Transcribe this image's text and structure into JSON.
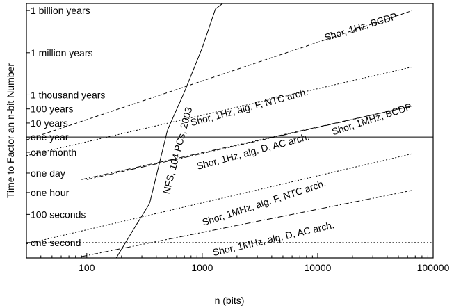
{
  "chart_data": {
    "type": "line",
    "xlabel": "n (bits)",
    "ylabel": "Time to Factor an n-bit Number",
    "x_scale": "log",
    "xlim": [
      30,
      100000
    ],
    "x_ticks": [
      {
        "value": 100,
        "label": "100"
      },
      {
        "value": 1000,
        "label": "1000"
      },
      {
        "value": 10000,
        "label": "10000"
      },
      {
        "value": 100000,
        "label": "100000"
      }
    ],
    "y_scale": "log",
    "y_unit": "seconds",
    "ylim": [
      0.08,
      1e+17
    ],
    "y_ticks": [
      {
        "value": 3.156e+16,
        "label": "1 billion years"
      },
      {
        "value": 31560000000000.0,
        "label": "1 million years"
      },
      {
        "value": 31560000000.0,
        "label": "1 thousand years"
      },
      {
        "value": 3156000000.0,
        "label": "100 years"
      },
      {
        "value": 315600000.0,
        "label": "10 years"
      },
      {
        "value": 31560000.0,
        "label": "one year"
      },
      {
        "value": 2630000.0,
        "label": "one month"
      },
      {
        "value": 86400,
        "label": "one day"
      },
      {
        "value": 3600,
        "label": "one hour"
      },
      {
        "value": 100,
        "label": "100 seconds"
      },
      {
        "value": 1,
        "label": "one second"
      }
    ],
    "reference_lines": [
      {
        "value": 31560000.0,
        "style": "solid"
      },
      {
        "value": 1,
        "style": "dotted"
      }
    ],
    "grid": false,
    "legend": "none",
    "series": [
      {
        "label": "NFS, 104 PCs, 2003",
        "style": "solid",
        "x": [
          180,
          250,
          350,
          500,
          700,
          1000,
          1300,
          1500
        ],
        "y": [
          0.08,
          7,
          600,
          100000000.0,
          50000000000.0,
          70000000000000.0,
          4e+16,
          1e+17
        ]
      },
      {
        "label": "Shor, 1Hz, BCDP",
        "style": "dashed",
        "x": [
          30,
          65000
        ],
        "y": [
          20000000.0,
          3e+16
        ]
      },
      {
        "label": "Shor, 1Hz, alg. F, NTC arch.",
        "style": "dotted",
        "x": [
          30,
          65000
        ],
        "y": [
          1500000.0,
          3000000000000.0
        ]
      },
      {
        "label": "Shor, 1MHz, BCDP",
        "style": "dashdot",
        "x": [
          90,
          65000
        ],
        "y": [
          30000.0,
          5000000000.0
        ]
      },
      {
        "label": "Shor, 1Hz, alg. D, AC arch.",
        "style": "dashdot",
        "x": [
          100,
          65000
        ],
        "y": [
          30000.0,
          5000000000.0
        ]
      },
      {
        "label": "Shor, 1MHz, alg. F, NTC arch.",
        "style": "dotted",
        "x": [
          30,
          65000
        ],
        "y": [
          0.8,
          2000000.0
        ]
      },
      {
        "label": "Shor, 1MHz, alg. D, AC arch.",
        "style": "dashdot",
        "x": [
          90,
          65000
        ],
        "y": [
          0.1,
          5000.0
        ]
      }
    ]
  }
}
